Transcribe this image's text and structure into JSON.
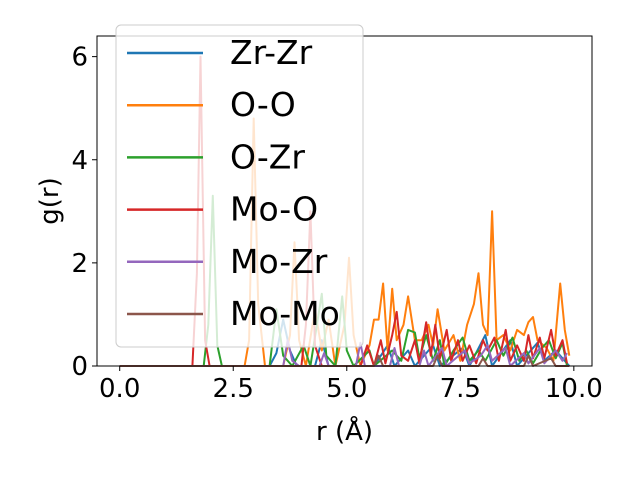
{
  "chart_data": {
    "type": "line",
    "xlabel": "r (Å)",
    "ylabel": "g(r)",
    "xlim": [
      -0.5,
      10.4
    ],
    "ylim": [
      0,
      6.4
    ],
    "xticks": [
      0.0,
      2.5,
      5.0,
      7.5,
      10.0
    ],
    "xtick_labels": [
      "0.0",
      "2.5",
      "5.0",
      "7.5",
      "10.0"
    ],
    "yticks": [
      0,
      2,
      4,
      6
    ],
    "ytick_labels": [
      "0",
      "2",
      "4",
      "6"
    ],
    "grid": false,
    "legend_position": "upper-left",
    "series": [
      {
        "name": "Zr-Zr",
        "color": "#1f77b4",
        "points": [
          [
            0.0,
            0
          ],
          [
            3.3,
            0
          ],
          [
            3.45,
            0.25
          ],
          [
            3.6,
            0.9
          ],
          [
            3.75,
            0.3
          ],
          [
            3.9,
            0
          ],
          [
            4.3,
            0
          ],
          [
            4.45,
            0.5
          ],
          [
            4.6,
            0
          ],
          [
            5.6,
            0
          ],
          [
            5.75,
            0.2
          ],
          [
            5.9,
            0.4
          ],
          [
            6.05,
            0
          ],
          [
            6.35,
            0.3
          ],
          [
            6.5,
            0
          ],
          [
            6.9,
            0.4
          ],
          [
            7.05,
            0
          ],
          [
            7.55,
            0.35
          ],
          [
            7.7,
            0
          ],
          [
            8.05,
            0.6
          ],
          [
            8.2,
            0
          ],
          [
            8.6,
            0.5
          ],
          [
            8.75,
            0
          ],
          [
            9.2,
            0.45
          ],
          [
            9.35,
            0.1
          ],
          [
            9.6,
            0.3
          ],
          [
            9.9,
            0
          ]
        ]
      },
      {
        "name": "O-O",
        "color": "#ff7f0e",
        "points": [
          [
            0.0,
            0
          ],
          [
            2.75,
            0
          ],
          [
            2.85,
            0.5
          ],
          [
            2.95,
            4.8
          ],
          [
            3.05,
            1.2
          ],
          [
            3.2,
            0
          ],
          [
            3.6,
            0
          ],
          [
            3.75,
            0.6
          ],
          [
            3.85,
            2.4
          ],
          [
            3.95,
            0.5
          ],
          [
            4.1,
            0
          ],
          [
            4.3,
            1.1
          ],
          [
            4.45,
            0.3
          ],
          [
            4.6,
            0.9
          ],
          [
            4.75,
            0
          ],
          [
            4.95,
            0.8
          ],
          [
            5.05,
            2.1
          ],
          [
            5.15,
            0.6
          ],
          [
            5.3,
            0
          ],
          [
            5.5,
            0.4
          ],
          [
            5.6,
            0.9
          ],
          [
            5.7,
            0.9
          ],
          [
            5.8,
            1.6
          ],
          [
            5.9,
            0.3
          ],
          [
            6.0,
            1.5
          ],
          [
            6.1,
            0.5
          ],
          [
            6.25,
            0.8
          ],
          [
            6.35,
            1.35
          ],
          [
            6.5,
            0.5
          ],
          [
            6.65,
            0.5
          ],
          [
            6.8,
            0.8
          ],
          [
            6.9,
            0.4
          ],
          [
            7.0,
            1.1
          ],
          [
            7.15,
            0.3
          ],
          [
            7.35,
            0.6
          ],
          [
            7.5,
            0.1
          ],
          [
            7.65,
            0.8
          ],
          [
            7.8,
            1.2
          ],
          [
            7.9,
            1.8
          ],
          [
            8.0,
            0.8
          ],
          [
            8.1,
            0.6
          ],
          [
            8.2,
            3.0
          ],
          [
            8.3,
            0.5
          ],
          [
            8.45,
            0.6
          ],
          [
            8.6,
            0.3
          ],
          [
            8.75,
            0.7
          ],
          [
            8.9,
            0.6
          ],
          [
            9.0,
            0.85
          ],
          [
            9.1,
            0.95
          ],
          [
            9.2,
            0.5
          ],
          [
            9.4,
            0.35
          ],
          [
            9.55,
            0.1
          ],
          [
            9.7,
            1.6
          ],
          [
            9.8,
            0.7
          ],
          [
            9.9,
            0.2
          ]
        ]
      },
      {
        "name": "O-Zr",
        "color": "#2ca02c",
        "points": [
          [
            0.0,
            0
          ],
          [
            1.85,
            0
          ],
          [
            1.95,
            0.8
          ],
          [
            2.05,
            3.3
          ],
          [
            2.15,
            0.4
          ],
          [
            2.25,
            0
          ],
          [
            3.3,
            0
          ],
          [
            3.45,
            1.1
          ],
          [
            3.6,
            0.2
          ],
          [
            3.8,
            0
          ],
          [
            4.05,
            0.4
          ],
          [
            4.2,
            0
          ],
          [
            4.45,
            1.4
          ],
          [
            4.55,
            0.2
          ],
          [
            4.75,
            0
          ],
          [
            4.9,
            1.35
          ],
          [
            5.0,
            0.3
          ],
          [
            5.15,
            0
          ],
          [
            5.5,
            0.3
          ],
          [
            5.6,
            0
          ],
          [
            6.0,
            0.3
          ],
          [
            6.2,
            0.1
          ],
          [
            6.35,
            0.7
          ],
          [
            6.5,
            0.65
          ],
          [
            6.6,
            0.15
          ],
          [
            6.75,
            0.6
          ],
          [
            6.9,
            0.1
          ],
          [
            7.05,
            0.5
          ],
          [
            7.15,
            0
          ],
          [
            7.35,
            0.3
          ],
          [
            7.55,
            0.55
          ],
          [
            7.7,
            0.1
          ],
          [
            7.9,
            0.3
          ],
          [
            8.05,
            0.1
          ],
          [
            8.3,
            0.5
          ],
          [
            8.45,
            0.2
          ],
          [
            8.65,
            0.55
          ],
          [
            8.8,
            0.1
          ],
          [
            8.95,
            0.3
          ],
          [
            9.1,
            0.05
          ],
          [
            9.3,
            0.35
          ],
          [
            9.45,
            0.5
          ],
          [
            9.6,
            0.15
          ],
          [
            9.75,
            0.45
          ],
          [
            9.85,
            0
          ]
        ]
      },
      {
        "name": "Mo-O",
        "color": "#d62728",
        "points": [
          [
            0.0,
            0
          ],
          [
            1.6,
            0
          ],
          [
            1.7,
            1.8
          ],
          [
            1.78,
            6.0
          ],
          [
            1.88,
            0.5
          ],
          [
            1.98,
            0
          ],
          [
            4.0,
            0
          ],
          [
            4.1,
            0.8
          ],
          [
            4.2,
            3.0
          ],
          [
            4.3,
            0.4
          ],
          [
            4.45,
            0
          ],
          [
            5.3,
            0
          ],
          [
            5.45,
            0.4
          ],
          [
            5.6,
            0
          ],
          [
            5.75,
            0.5
          ],
          [
            5.85,
            0.05
          ],
          [
            6.0,
            0.6
          ],
          [
            6.1,
            1.05
          ],
          [
            6.2,
            0.2
          ],
          [
            6.35,
            0.1
          ],
          [
            6.5,
            0.5
          ],
          [
            6.6,
            0.05
          ],
          [
            6.75,
            0.85
          ],
          [
            6.85,
            0.2
          ],
          [
            6.95,
            0.8
          ],
          [
            7.05,
            0.15
          ],
          [
            7.2,
            0.7
          ],
          [
            7.3,
            0.1
          ],
          [
            7.45,
            0.5
          ],
          [
            7.55,
            0.1
          ],
          [
            7.7,
            0.4
          ],
          [
            7.85,
            0.05
          ],
          [
            8.0,
            0.5
          ],
          [
            8.1,
            0.3
          ],
          [
            8.25,
            0.55
          ],
          [
            8.35,
            0.1
          ],
          [
            8.5,
            0.7
          ],
          [
            8.6,
            0.1
          ],
          [
            8.75,
            0.4
          ],
          [
            8.9,
            0.1
          ],
          [
            9.0,
            0.6
          ],
          [
            9.1,
            0.15
          ],
          [
            9.25,
            0.55
          ],
          [
            9.35,
            0.15
          ],
          [
            9.5,
            0.7
          ],
          [
            9.6,
            0.2
          ],
          [
            9.75,
            0.5
          ],
          [
            9.85,
            0.05
          ]
        ]
      },
      {
        "name": "Mo-Zr",
        "color": "#9467bd",
        "points": [
          [
            0.0,
            0
          ],
          [
            3.6,
            0
          ],
          [
            3.7,
            0.5
          ],
          [
            3.8,
            0.1
          ],
          [
            3.95,
            0
          ],
          [
            4.4,
            0
          ],
          [
            4.5,
            0.25
          ],
          [
            4.6,
            0
          ],
          [
            5.2,
            0
          ],
          [
            5.3,
            0.45
          ],
          [
            5.4,
            0
          ],
          [
            5.95,
            0
          ],
          [
            6.05,
            0.35
          ],
          [
            6.15,
            0
          ],
          [
            6.6,
            0
          ],
          [
            6.7,
            0.3
          ],
          [
            6.8,
            0
          ],
          [
            7.1,
            0.35
          ],
          [
            7.2,
            0
          ],
          [
            7.6,
            0.3
          ],
          [
            7.7,
            0.05
          ],
          [
            7.95,
            0.2
          ],
          [
            8.1,
            0.4
          ],
          [
            8.2,
            0.1
          ],
          [
            8.5,
            0.35
          ],
          [
            8.6,
            0
          ],
          [
            8.9,
            0.25
          ],
          [
            9.0,
            0.05
          ],
          [
            9.25,
            0.35
          ],
          [
            9.35,
            0.05
          ],
          [
            9.6,
            0.3
          ],
          [
            9.75,
            0.1
          ],
          [
            9.85,
            0.25
          ]
        ]
      },
      {
        "name": "Mo-Mo",
        "color": "#8c564b",
        "points": [
          [
            0.0,
            0
          ],
          [
            5.6,
            0
          ],
          [
            5.7,
            0.2
          ],
          [
            5.8,
            0
          ],
          [
            6.9,
            0
          ],
          [
            7.0,
            0.2
          ],
          [
            7.1,
            0
          ],
          [
            7.9,
            0
          ],
          [
            8.0,
            0.15
          ],
          [
            8.1,
            0
          ],
          [
            8.9,
            0
          ],
          [
            9.0,
            0.2
          ],
          [
            9.1,
            0
          ],
          [
            9.5,
            0.15
          ],
          [
            9.6,
            0
          ],
          [
            9.9,
            0
          ]
        ]
      }
    ]
  }
}
